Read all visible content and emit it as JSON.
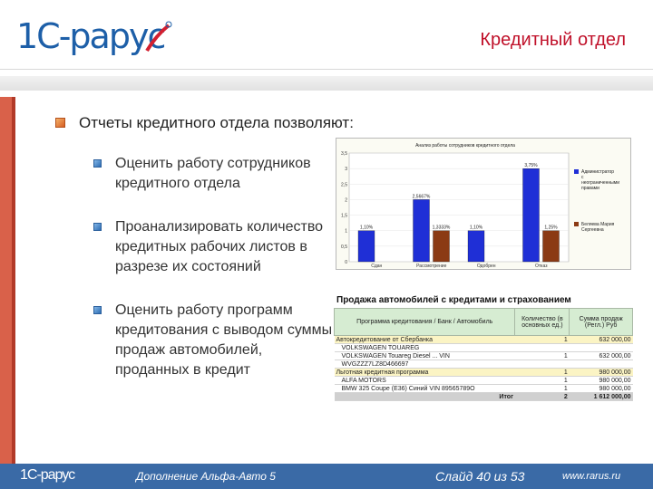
{
  "header": {
    "logo_text": "1C-рарус",
    "title": "Кредитный отдел"
  },
  "main": {
    "heading": "Отчеты кредитного отдела позволяют:",
    "bullets": [
      "Оценить работу сотрудников кредитного отдела",
      "Проанализировать количество кредитных рабочих листов в разрезе их состояний",
      "Оценить работу программ кредитования с выводом суммы продаж автомобилей, проданных в кредит"
    ]
  },
  "chart_data": {
    "type": "bar",
    "title": "Анализ работы сотрудников кредитного отдела",
    "categories": [
      "Сдан",
      "Рассмотрение",
      "Одобрен",
      "Отказ"
    ],
    "series": [
      {
        "name": "Администратор с неограниченными правами",
        "values": [
          1,
          2,
          1,
          3
        ],
        "labels": [
          "1,10%",
          "2,5667%",
          "1,10%",
          "3,75%"
        ],
        "color": "#1f2fd6"
      },
      {
        "name": "Беляева Мария Сергеевна",
        "values": [
          0,
          1,
          0,
          1
        ],
        "labels": [
          "",
          "1,3333%",
          "",
          "1,25%"
        ],
        "color": "#8b3a14"
      }
    ],
    "ylim": [
      0,
      3.5
    ],
    "yticks": [
      "0",
      "0,5",
      "1",
      "1,5",
      "2",
      "2,5",
      "3",
      "3,5"
    ],
    "legend": "right"
  },
  "report": {
    "title": "Продажа автомобилей с кредитами и страхованием",
    "columns": [
      "Программа кредитования / Банк / Автомобиль",
      "Количество (в основных ед.)",
      "Сумма продаж (Регл.) Руб"
    ],
    "rows": [
      {
        "name": "Автокредитование от Сбербанка",
        "qty": "1",
        "sum": "632 000,00",
        "group": true
      },
      {
        "name": "VOLKSWAGEN TOUAREG",
        "qty": "",
        "sum": "",
        "group": false
      },
      {
        "name": "VOLKSWAGEN Touareg Diesel ... VIN",
        "qty": "1",
        "sum": "632 000,00",
        "group": false
      },
      {
        "name": "WVGZZZ7LZ8D466697",
        "qty": "",
        "sum": "",
        "group": false
      },
      {
        "name": "Льготная кредитная программа",
        "qty": "1",
        "sum": "980 000,00",
        "group": true
      },
      {
        "name": "ALFA MOTORS",
        "qty": "1",
        "sum": "980 000,00",
        "group": false
      },
      {
        "name": "BMW 325 Coupe (E36) Синий VIN 89565789O",
        "qty": "1",
        "sum": "980 000,00",
        "group": false
      }
    ],
    "total": {
      "label": "Итог",
      "qty": "2",
      "sum": "1 612 000,00"
    }
  },
  "footer": {
    "logo": "1C-рарус",
    "product": "Дополнение Альфа-Авто 5",
    "slide": "Слайд 40 из 53",
    "site": "www.rarus.ru"
  },
  "colors": {
    "title_red": "#c0112a",
    "footer_blue": "#3a6aa6",
    "side_bar": "#d9614a"
  }
}
